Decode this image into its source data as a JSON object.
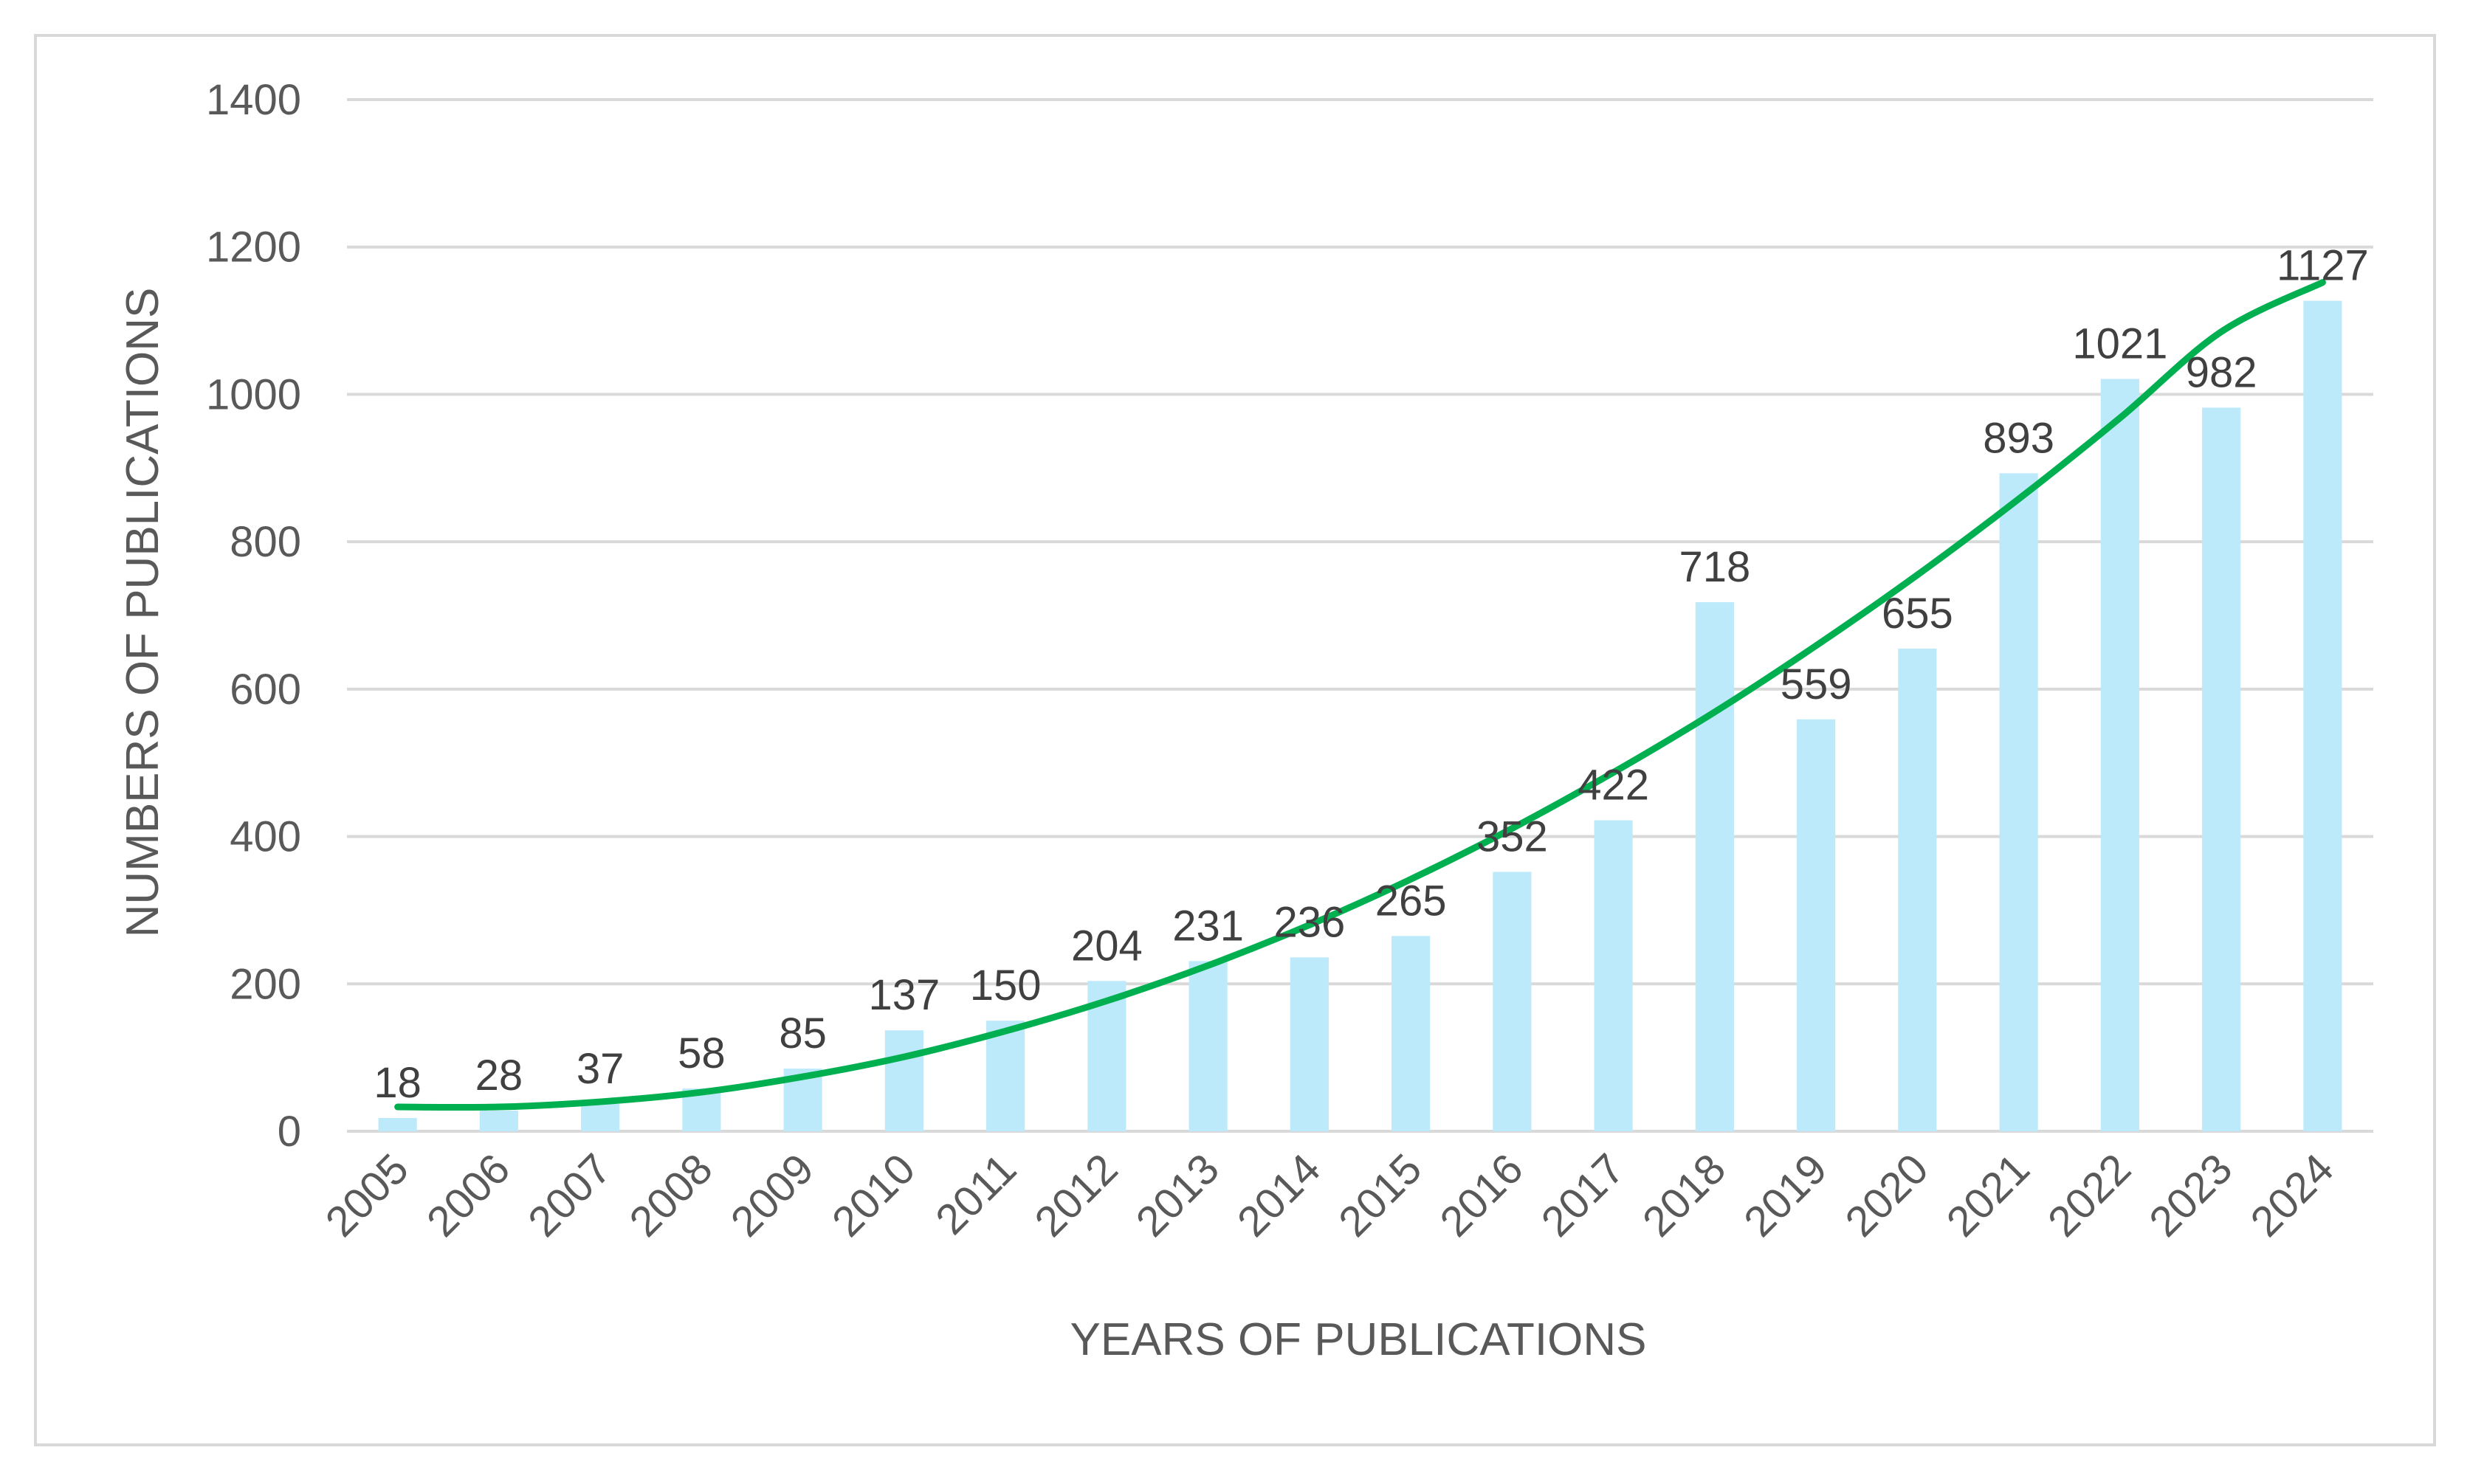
{
  "chart_data": {
    "type": "bar",
    "title": "",
    "xlabel": "YEARS OF PUBLICATIONS",
    "ylabel": "NUMBERS OF PUBLICATIONS",
    "categories": [
      "2005",
      "2006",
      "2007",
      "2008",
      "2009",
      "2010",
      "2011",
      "2012",
      "2013",
      "2014",
      "2015",
      "2016",
      "2017",
      "2018",
      "2019",
      "2020",
      "2021",
      "2022",
      "2023",
      "2024"
    ],
    "values": [
      18,
      28,
      37,
      58,
      85,
      137,
      150,
      204,
      231,
      236,
      265,
      352,
      422,
      718,
      559,
      655,
      893,
      1021,
      982,
      1127
    ],
    "ylim": [
      0,
      1400
    ],
    "yticks": [
      0,
      200,
      400,
      600,
      800,
      1000,
      1200,
      1400
    ],
    "grid": true,
    "trendline": {
      "type": "polynomial",
      "values": [
        33,
        33,
        40,
        53,
        74,
        101,
        136,
        177,
        225,
        280,
        342,
        411,
        487,
        569,
        659,
        755,
        858,
        968,
        1085,
        1152
      ]
    },
    "colors": {
      "bar": "#bdeafb",
      "trendline": "#00b050",
      "grid": "#d9d9d9",
      "text": "#595959"
    }
  }
}
